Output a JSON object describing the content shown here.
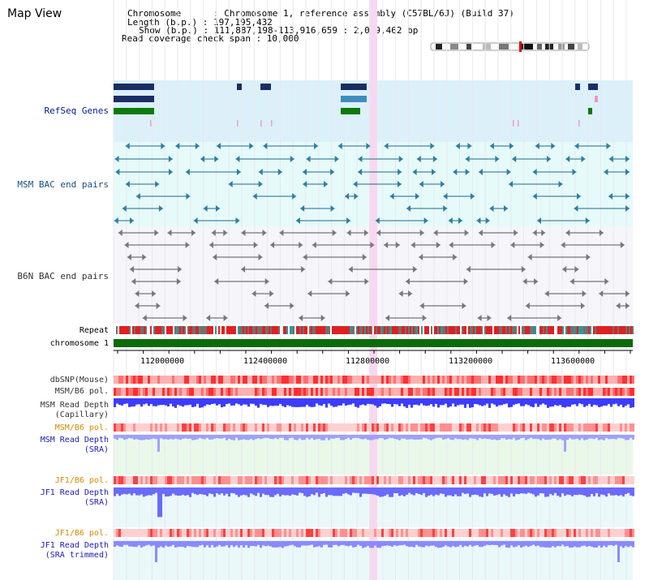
{
  "page": {
    "title": "Map View"
  },
  "header": {
    "chromosome_line": "Chromosome      : Chromosome 1, reference assembly (C57BL/6J) (Build 37)",
    "length_line": "Length (b.p.) : 197,195,432",
    "show_line": "Show (b.p.) : 111,887,198-113,916,659 : 2,029,462 bp",
    "coverage_line": "Read coverage check span : 10,000"
  },
  "tracks": {
    "refseq": "RefSeq Genes",
    "msm_bac": "MSM BAC end pairs",
    "b6n_bac": "B6N BAC end pairs",
    "repeat": "Repeat",
    "chromosome": "chromosome 1",
    "dbsnp": "dbSNP(Mouse)",
    "msm_b6_pol_1": "MSM/B6 pol.",
    "msm_read_depth_cap_1": "MSM Read Depth",
    "msm_read_depth_cap_2": "(Capillary)",
    "msm_b6_pol_2": "MSM/B6 pol.",
    "msm_read_depth_sra_1": "MSM Read Depth",
    "msm_read_depth_sra_2": "(SRA)",
    "jf1_b6_pol_1": "JF1/B6 pol.",
    "jf1_read_depth_sra_1": "JF1 Read Depth",
    "jf1_read_depth_sra_2": "(SRA)",
    "jf1_b6_pol_2": "JF1/B6 pol.",
    "jf1_read_depth_trim_1": "JF1 Read Depth",
    "jf1_read_depth_trim_2": "(SRA trimmed)"
  },
  "axis": {
    "ticks": [
      "112000000",
      "112400000",
      "112800000",
      "113200000",
      "113600000"
    ]
  },
  "colors": {
    "refseq_bg": "#dcf0fa",
    "msm_bg": "#e6fafa",
    "b6n_bg": "#f5f5fa",
    "highlight": "#f8d8f0",
    "chromosome": "#0b6b0b",
    "read_depth_blue": "#3c3cff",
    "pol_red": "#ff5050"
  }
}
